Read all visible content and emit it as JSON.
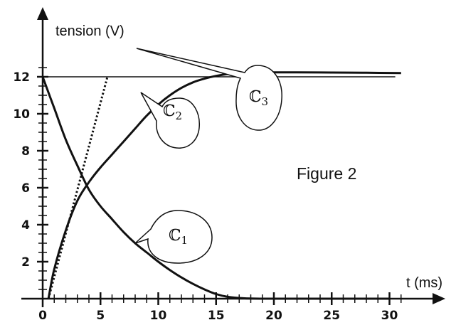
{
  "chart_data": {
    "type": "line",
    "ylabel": "tension (V)",
    "xlabel": "t (ms)",
    "figure_label": "Figure 2",
    "xlim": [
      0,
      32
    ],
    "ylim": [
      0,
      13
    ],
    "xticks": [
      "0",
      "5",
      "10",
      "15",
      "20",
      "25",
      "30"
    ],
    "yticks": [
      "2",
      "4",
      "6",
      "8",
      "10",
      "12"
    ],
    "asymptote": 12,
    "series": [
      {
        "name": "C1",
        "label_main": "ℂ",
        "label_sub": "1",
        "x": [
          0,
          1,
          2,
          3,
          4,
          5,
          6,
          7,
          8,
          9,
          10,
          11,
          12,
          13,
          14,
          15,
          16,
          17,
          18,
          20,
          22,
          25,
          30
        ],
        "y": [
          12.0,
          10.3,
          8.6,
          7.2,
          5.9,
          5.0,
          4.3,
          3.6,
          3.0,
          2.5,
          2.0,
          1.55,
          1.15,
          0.8,
          0.5,
          0.25,
          0.1,
          0.04,
          0.01,
          0,
          0,
          0,
          0
        ]
      },
      {
        "name": "C2",
        "label_main": "ℂ",
        "label_sub": "2",
        "x": [
          0.5,
          1,
          2,
          3,
          4,
          5,
          6,
          7,
          8,
          9,
          10,
          11,
          12,
          13,
          14,
          15,
          16,
          17,
          18,
          20,
          22,
          25,
          28,
          31
        ],
        "y": [
          0,
          1.6,
          3.7,
          5.3,
          6.3,
          7.1,
          7.8,
          8.5,
          9.2,
          9.9,
          10.5,
          11.0,
          11.4,
          11.7,
          11.9,
          12.05,
          12.15,
          12.2,
          12.22,
          12.24,
          12.24,
          12.23,
          12.22,
          12.2
        ]
      },
      {
        "name": "C3",
        "label_main": "ℂ",
        "label_sub": "3",
        "style": "dotted",
        "x": [
          0.5,
          5.6
        ],
        "y": [
          0,
          12
        ]
      }
    ]
  }
}
